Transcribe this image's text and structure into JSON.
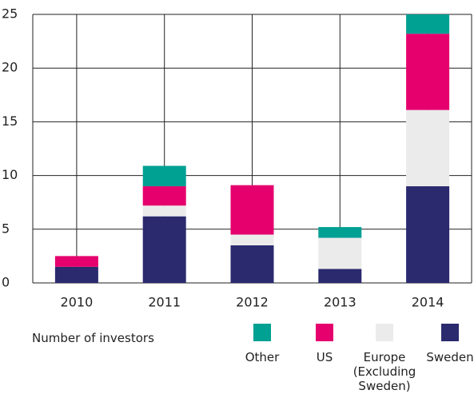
{
  "chart_data": {
    "type": "stacked_bar",
    "categories": [
      "2010",
      "2011",
      "2012",
      "2013",
      "2014"
    ],
    "series": [
      {
        "name": "Sweden",
        "color": "#2b2a6e",
        "values": [
          1.5,
          6.2,
          3.5,
          1.3,
          9.0
        ]
      },
      {
        "name": "Europe (Excluding Sweden)",
        "color": "#ebebeb",
        "values": [
          0,
          1.0,
          1.0,
          2.9,
          7.1
        ]
      },
      {
        "name": "US",
        "color": "#e5006d",
        "values": [
          1.0,
          1.8,
          4.6,
          0,
          7.1
        ]
      },
      {
        "name": "Other",
        "color": "#00a093",
        "values": [
          0,
          1.9,
          0,
          1.0,
          1.8
        ]
      }
    ],
    "ylim": [
      0,
      25
    ],
    "yticks": [
      0,
      5,
      10,
      15,
      20,
      25
    ],
    "grid": true,
    "legend_title": "Number of investors"
  }
}
